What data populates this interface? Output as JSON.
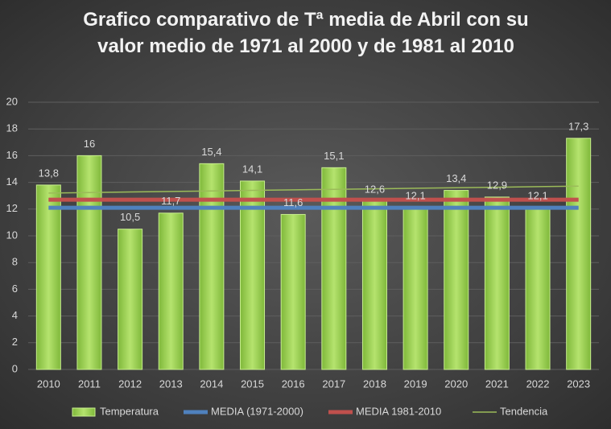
{
  "chart_data": {
    "type": "bar",
    "title": "Grafico comparativo de Tª media de Abril con su valor medio de 1971 al 2000 y de 1981 al 2010",
    "categories": [
      "2010",
      "2011",
      "2012",
      "2013",
      "2014",
      "2015",
      "2016",
      "2017",
      "2018",
      "2019",
      "2020",
      "2021",
      "2022",
      "2023"
    ],
    "series": [
      {
        "name": "Temperatura",
        "type": "bar",
        "color": "#92d050",
        "values": [
          13.8,
          16,
          10.5,
          11.7,
          15.4,
          14.1,
          11.6,
          15.1,
          12.6,
          12.1,
          13.4,
          12.9,
          12.1,
          17.3
        ],
        "value_labels": [
          "13,8",
          "16",
          "10,5",
          "11,7",
          "15,4",
          "14,1",
          "11,6",
          "15,1",
          "12,6",
          "12,1",
          "13,4",
          "12,9",
          "12,1",
          "17,3"
        ]
      },
      {
        "name": "MEDIA (1971-2000)",
        "type": "line",
        "color": "#4f81bd",
        "width": 5,
        "values": [
          12.1,
          12.1,
          12.1,
          12.1,
          12.1,
          12.1,
          12.1,
          12.1,
          12.1,
          12.1,
          12.1,
          12.1,
          12.1,
          12.1
        ]
      },
      {
        "name": "MEDIA 1981-2010",
        "type": "line",
        "color": "#c0504d",
        "width": 5,
        "values": [
          12.7,
          12.7,
          12.7,
          12.7,
          12.7,
          12.7,
          12.7,
          12.7,
          12.7,
          12.7,
          12.7,
          12.7,
          12.7,
          12.7
        ]
      },
      {
        "name": "Tendencia",
        "type": "line",
        "color": "#9bbb59",
        "width": 1.5,
        "values": [
          13.2,
          13.24,
          13.28,
          13.32,
          13.36,
          13.4,
          13.44,
          13.48,
          13.52,
          13.56,
          13.6,
          13.64,
          13.68,
          13.72
        ]
      }
    ],
    "ylim": [
      0,
      20
    ],
    "yticks": [
      0,
      2,
      4,
      6,
      8,
      10,
      12,
      14,
      16,
      18,
      20
    ],
    "grid": true,
    "legend": "bottom"
  }
}
